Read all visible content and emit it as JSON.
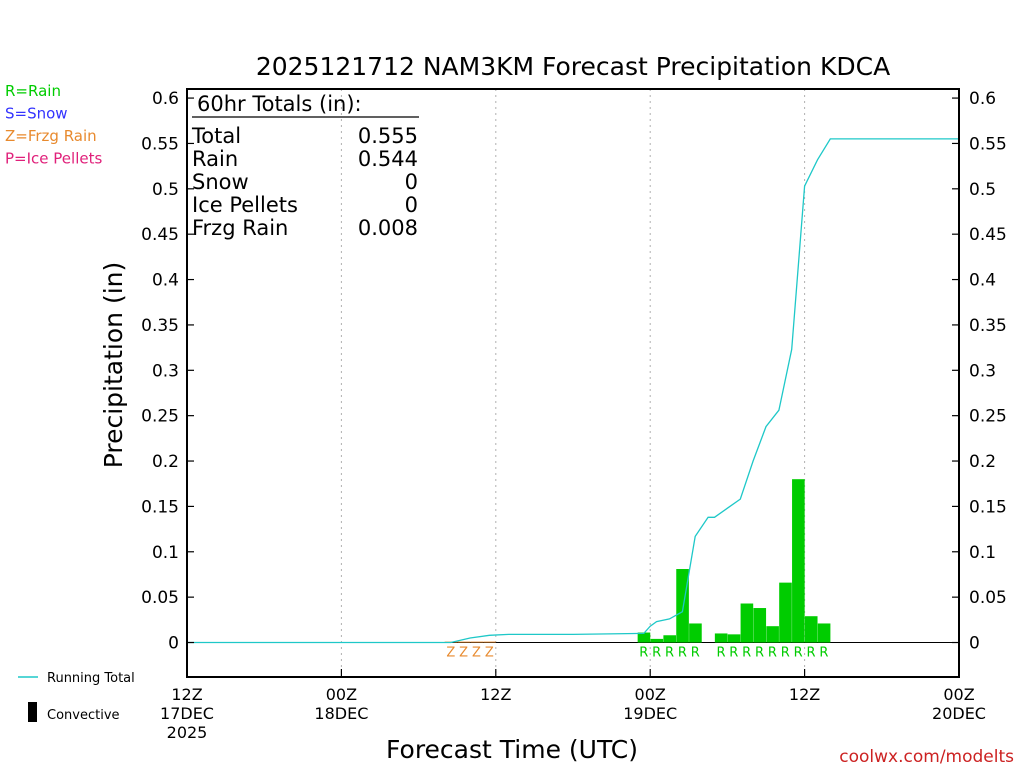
{
  "colors": {
    "rain": "#00cc00",
    "snow": "#3333ff",
    "frzg_rain": "#e88a2e",
    "ice_pellets": "#e0207a",
    "running_total": "#1ec8c8",
    "axes": "#000000",
    "grid": "#b0b0b0",
    "watermark": "#cc2222"
  },
  "legend_ptypes": [
    {
      "key": "rain",
      "label": "R=Rain"
    },
    {
      "key": "snow",
      "label": "S=Snow"
    },
    {
      "key": "frzg_rain",
      "label": "Z=Frzg Rain"
    },
    {
      "key": "ice_pellets",
      "label": "P=Ice Pellets"
    }
  ],
  "legend_lines": {
    "running_total": "Running Total",
    "convective": "Convective"
  },
  "totals_box": {
    "title": "60hr Totals (in):",
    "rows": [
      {
        "label": "Total",
        "value": "0.555"
      },
      {
        "label": "Rain",
        "value": "0.544"
      },
      {
        "label": "Snow",
        "value": "0"
      },
      {
        "label": "Ice Pellets",
        "value": "0"
      },
      {
        "label": "Frzg Rain",
        "value": "0.008"
      }
    ]
  },
  "watermark": "coolwx.com/modelts",
  "chart_data": {
    "type": "bar",
    "title": "2025121712 NAM3KM Forecast Precipitation KDCA",
    "xlabel": "Forecast Time (UTC)",
    "ylabel": "Precipitation (in)",
    "x_unit": "forecast hour",
    "xlim": [
      0,
      60
    ],
    "ylim": [
      -0.038,
      0.61
    ],
    "y_ticks": [
      0,
      0.05,
      0.1,
      0.15,
      0.2,
      0.25,
      0.3,
      0.35,
      0.4,
      0.45,
      0.5,
      0.55,
      0.6
    ],
    "y_tick_labels": [
      "0",
      "0.05",
      "0.1",
      "0.15",
      "0.2",
      "0.25",
      "0.3",
      "0.35",
      "0.4",
      "0.45",
      "0.5",
      "0.55",
      "0.6"
    ],
    "x_ticks": [
      {
        "hour": 0,
        "lines": [
          "12Z",
          "17DEC",
          "2025"
        ]
      },
      {
        "hour": 12,
        "lines": [
          "00Z",
          "18DEC"
        ]
      },
      {
        "hour": 24,
        "lines": [
          "12Z"
        ]
      },
      {
        "hour": 36,
        "lines": [
          "00Z",
          "19DEC"
        ]
      },
      {
        "hour": 48,
        "lines": [
          "12Z"
        ]
      },
      {
        "hour": 60,
        "lines": [
          "00Z",
          "20DEC"
        ]
      }
    ],
    "gridlines_x": [
      12,
      24,
      36,
      48
    ],
    "bars": [
      {
        "hour": 21,
        "value": 0.001,
        "ptype": "Z"
      },
      {
        "hour": 22,
        "value": 0.001,
        "ptype": "Z"
      },
      {
        "hour": 23,
        "value": 0.001,
        "ptype": "Z"
      },
      {
        "hour": 24,
        "value": 0.001,
        "ptype": "Z"
      },
      {
        "hour": 36,
        "value": 0.011,
        "ptype": "R"
      },
      {
        "hour": 37,
        "value": 0.004,
        "ptype": "R"
      },
      {
        "hour": 38,
        "value": 0.008,
        "ptype": "R"
      },
      {
        "hour": 39,
        "value": 0.081,
        "ptype": "R"
      },
      {
        "hour": 40,
        "value": 0.021,
        "ptype": "R"
      },
      {
        "hour": 42,
        "value": 0.01,
        "ptype": "R"
      },
      {
        "hour": 43,
        "value": 0.009,
        "ptype": "R"
      },
      {
        "hour": 44,
        "value": 0.043,
        "ptype": "R"
      },
      {
        "hour": 45,
        "value": 0.038,
        "ptype": "R"
      },
      {
        "hour": 46,
        "value": 0.018,
        "ptype": "R"
      },
      {
        "hour": 47,
        "value": 0.066,
        "ptype": "R"
      },
      {
        "hour": 48,
        "value": 0.18,
        "ptype": "R"
      },
      {
        "hour": 49,
        "value": 0.029,
        "ptype": "R"
      },
      {
        "hour": 50,
        "value": 0.021,
        "ptype": "R"
      }
    ],
    "running_total": {
      "name": "Running Total",
      "x": [
        0,
        20.5,
        22,
        23.5,
        25,
        30,
        35.5,
        36,
        36.5,
        37.5,
        38.5,
        39.5,
        40.5,
        41,
        42,
        43,
        44,
        45,
        46,
        47,
        48,
        49,
        50,
        60
      ],
      "y": [
        0,
        0,
        0.005,
        0.008,
        0.009,
        0.009,
        0.01,
        0.018,
        0.023,
        0.026,
        0.034,
        0.117,
        0.138,
        0.138,
        0.148,
        0.158,
        0.2,
        0.238,
        0.256,
        0.323,
        0.503,
        0.532,
        0.555,
        0.555
      ]
    }
  }
}
